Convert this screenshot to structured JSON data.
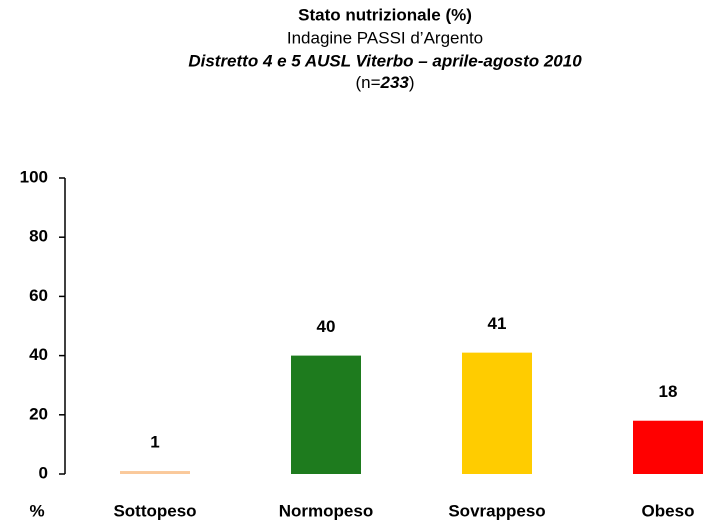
{
  "chart_data": {
    "type": "bar",
    "title": "Stato nutrizionale (%)",
    "subtitle": "Indagine PASSI d’Argento",
    "subtitle2": "Distretto 4 e 5 AUSL Viterbo – aprile-agosto 2010",
    "sample_size": [
      "(n=",
      "233",
      ")"
    ],
    "ylabel": "%",
    "categories": [
      "Sottopeso",
      "Normopeso",
      "Sovrappeso",
      "Obeso"
    ],
    "values": [
      1,
      40,
      41,
      18
    ],
    "colors": [
      "#fac99b",
      "#1e7b1e",
      "#ffcc00",
      "#ff0000"
    ],
    "ylim": [
      0,
      100
    ],
    "yticks": [
      0,
      20,
      40,
      60,
      80,
      100
    ],
    "grid": false
  }
}
